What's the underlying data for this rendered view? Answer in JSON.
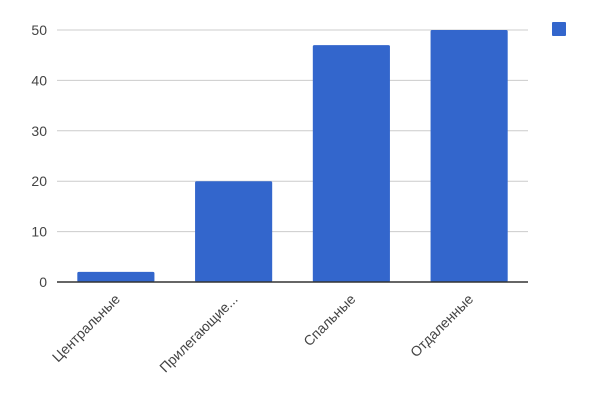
{
  "chart_data": {
    "type": "bar",
    "categories": [
      "Центральные",
      "Прилегающие...",
      "Спальные",
      "Отдаленные"
    ],
    "series": [
      {
        "values": [
          2,
          20,
          47,
          50
        ],
        "color": "#3366cc"
      }
    ],
    "ylim": [
      0,
      50
    ],
    "yticks": [
      0,
      10,
      20,
      30,
      40,
      50
    ],
    "grid": true,
    "legend_position": "top-right",
    "title": "",
    "xlabel": "",
    "ylabel": ""
  }
}
